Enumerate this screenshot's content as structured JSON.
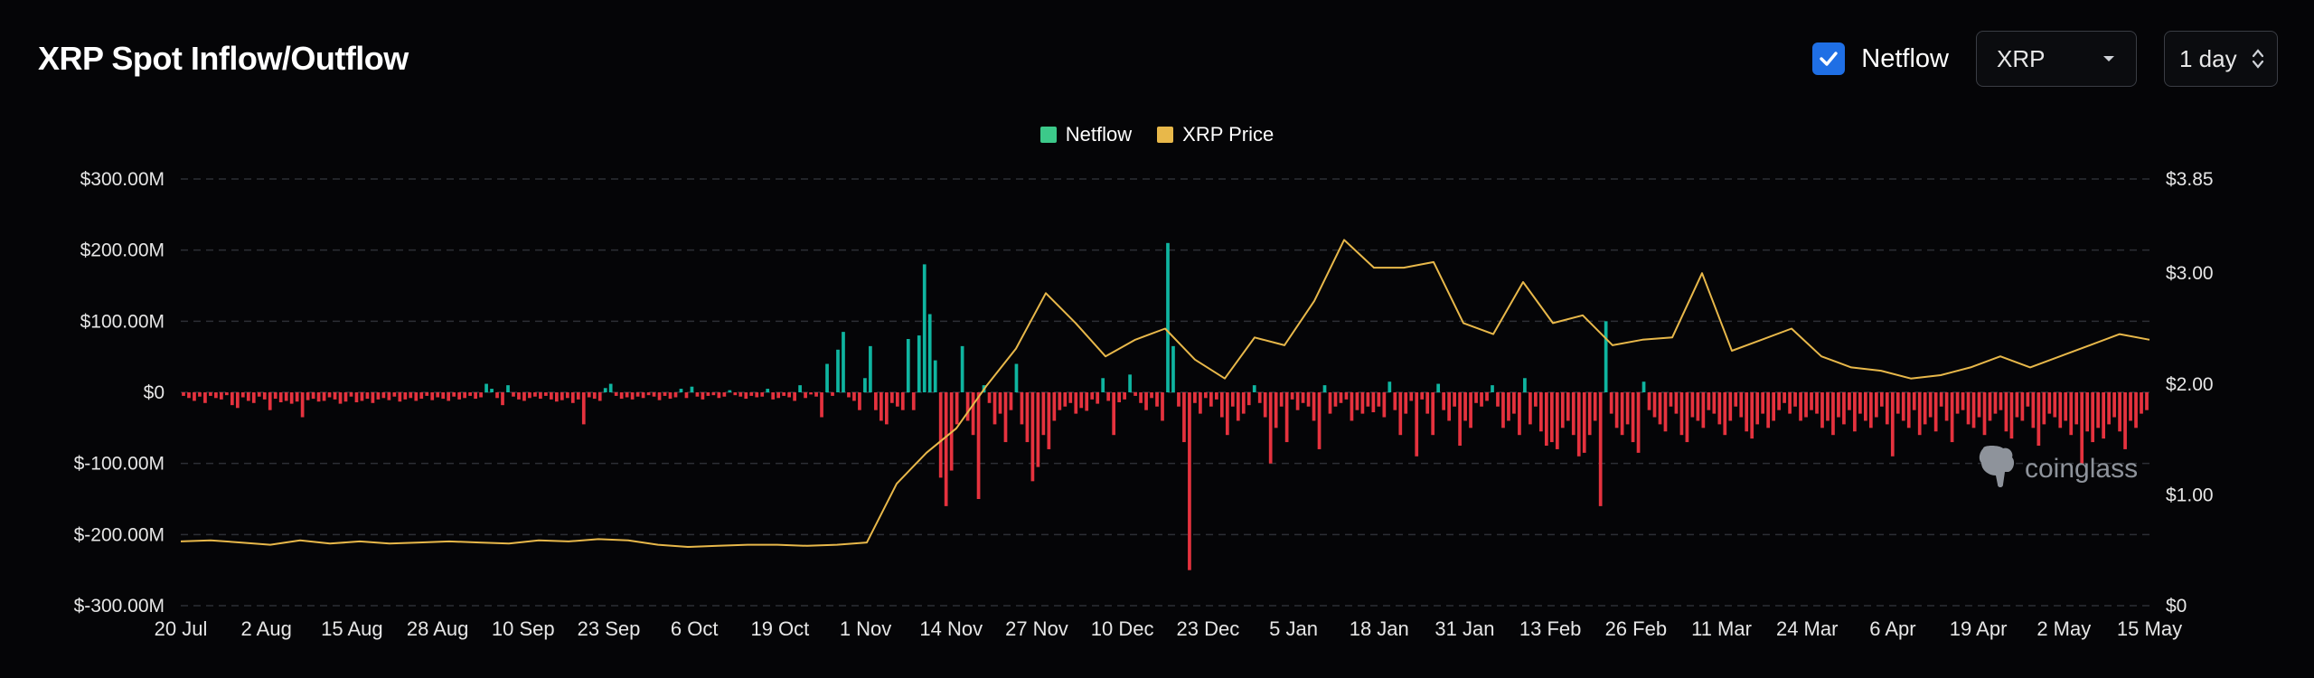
{
  "header": {
    "title": "XRP Spot Inflow/Outflow"
  },
  "controls": {
    "netflow_checkbox": {
      "label": "Netflow",
      "checked": true
    },
    "coin_select": {
      "value": "XRP"
    },
    "interval_select": {
      "value": "1 day"
    }
  },
  "watermark": {
    "text": "coinglass"
  },
  "colors": {
    "positive": "#0fb5a0",
    "negative": "#e5323e",
    "price_line": "#e8b84a",
    "legend_netflow": "#3cc98a",
    "legend_price": "#e8b84a",
    "checkbox": "#1f6fe5"
  },
  "chart_data": {
    "type": "bar",
    "title": "XRP Spot Inflow/Outflow",
    "legend": {
      "position": "top-center",
      "entries": [
        "Netflow",
        "XRP Price"
      ]
    },
    "grid": true,
    "x_tick_labels": [
      "20 Jul",
      "2 Aug",
      "15 Aug",
      "28 Aug",
      "10 Sep",
      "23 Sep",
      "6 Oct",
      "19 Oct",
      "1 Nov",
      "14 Nov",
      "27 Nov",
      "10 Dec",
      "23 Dec",
      "5 Jan",
      "18 Jan",
      "31 Jan",
      "13 Feb",
      "26 Feb",
      "11 Mar",
      "24 Mar",
      "6 Apr",
      "19 Apr",
      "2 May",
      "15 May"
    ],
    "y_left": {
      "ylim": [
        -300,
        300
      ],
      "unit": "$M",
      "ticks": [
        300,
        200,
        100,
        0,
        -100,
        -200,
        -300
      ],
      "tick_labels": [
        "$300.00M",
        "$200.00M",
        "$100.00M",
        "$0",
        "$-100.00M",
        "$-200.00M",
        "$-300.00M"
      ]
    },
    "y_right": {
      "ylim": [
        0,
        3.85
      ],
      "tick_values": [
        3.85,
        3.0,
        2.0,
        1.0,
        0
      ],
      "tick_labels": [
        "$3.85",
        "$3.00",
        "$2.00",
        "$1.00",
        "$0"
      ]
    },
    "netflow": {
      "name": "Netflow",
      "unit": "$M",
      "values": [
        -5,
        -8,
        -12,
        -6,
        -15,
        -5,
        -8,
        -10,
        -4,
        -18,
        -22,
        -7,
        -12,
        -15,
        -6,
        -10,
        -25,
        -9,
        -14,
        -12,
        -16,
        -13,
        -35,
        -11,
        -9,
        -13,
        -12,
        -7,
        -10,
        -16,
        -13,
        -6,
        -14,
        -12,
        -9,
        -15,
        -10,
        -8,
        -11,
        -6,
        -13,
        -10,
        -8,
        -12,
        -9,
        -5,
        -11,
        -7,
        -9,
        -12,
        -6,
        -10,
        -8,
        -5,
        -9,
        -7,
        12,
        5,
        -8,
        -18,
        10,
        -6,
        -10,
        -12,
        -8,
        -6,
        -9,
        -5,
        -10,
        -13,
        -11,
        -8,
        -15,
        -10,
        -45,
        -7,
        -9,
        -12,
        6,
        12,
        -5,
        -9,
        -7,
        -10,
        -6,
        -8,
        -4,
        -6,
        -11,
        -5,
        -9,
        -7,
        5,
        -8,
        8,
        -6,
        -10,
        -5,
        -4,
        -8,
        -6,
        3,
        -4,
        -6,
        -9,
        -5,
        -7,
        -6,
        5,
        -10,
        -8,
        -5,
        -7,
        -12,
        10,
        -8,
        -3,
        -6,
        -35,
        40,
        -5,
        60,
        85,
        -7,
        -12,
        -25,
        20,
        65,
        -25,
        -40,
        -45,
        -15,
        -20,
        -25,
        75,
        -25,
        80,
        180,
        110,
        45,
        -120,
        -160,
        -110,
        -45,
        65,
        -40,
        -60,
        -150,
        10,
        -15,
        -45,
        -30,
        -70,
        -25,
        40,
        -45,
        -70,
        -125,
        -105,
        -60,
        -80,
        -40,
        -25,
        -20,
        -15,
        -30,
        -22,
        -26,
        -10,
        -16,
        20,
        -12,
        -60,
        -14,
        -10,
        25,
        -5,
        -15,
        -25,
        -8,
        -20,
        -40,
        210,
        65,
        -20,
        -70,
        -250,
        -15,
        -30,
        -8,
        -20,
        -10,
        -35,
        -60,
        -20,
        -40,
        -30,
        -18,
        10,
        -15,
        -35,
        -100,
        -50,
        -20,
        -70,
        -10,
        -25,
        -15,
        -20,
        -40,
        -80,
        10,
        -30,
        -20,
        -15,
        -10,
        -40,
        -25,
        -30,
        -20,
        -28,
        -20,
        -35,
        15,
        -25,
        -60,
        -30,
        -12,
        -90,
        -10,
        -30,
        -60,
        12,
        -25,
        -40,
        -20,
        -75,
        -40,
        -50,
        -15,
        -20,
        -12,
        10,
        -20,
        -50,
        -40,
        -30,
        -60,
        20,
        -45,
        -20,
        -55,
        -75,
        -70,
        -80,
        -50,
        -40,
        -60,
        -90,
        -85,
        -60,
        -40,
        -160,
        100,
        -30,
        -50,
        -60,
        -45,
        -70,
        -85,
        15,
        -25,
        -35,
        -45,
        -55,
        -20,
        -30,
        -60,
        -70,
        -35,
        -40,
        -50,
        -25,
        -30,
        -45,
        -60,
        -40,
        -20,
        -35,
        -55,
        -65,
        -45,
        -30,
        -50,
        -40,
        -25,
        -15,
        -30,
        -20,
        -40,
        -35,
        -25,
        -30,
        -50,
        -40,
        -60,
        -35,
        -45,
        -25,
        -55,
        -30,
        -40,
        -50,
        -35,
        -20,
        -45,
        -90,
        -30,
        -40,
        -50,
        -25,
        -60,
        -45,
        -35,
        -55,
        -20,
        -40,
        -70,
        -30,
        -25,
        -45,
        -50,
        -35,
        -60,
        -40,
        -30,
        -25,
        -55,
        -65,
        -35,
        -40,
        -20,
        -50,
        -75,
        -45,
        -30,
        -35,
        -50,
        -40,
        -60,
        -45,
        -100,
        -55,
        -70,
        -50,
        -65,
        -45,
        -35,
        -55,
        -80,
        -40,
        -50,
        -30,
        -25
      ]
    },
    "price": {
      "name": "XRP Price",
      "unit": "$",
      "x_start": "20 Jul",
      "step_days": 7,
      "values": [
        0.58,
        0.59,
        0.57,
        0.55,
        0.59,
        0.56,
        0.58,
        0.56,
        0.57,
        0.58,
        0.57,
        0.56,
        0.59,
        0.58,
        0.6,
        0.59,
        0.55,
        0.53,
        0.54,
        0.55,
        0.55,
        0.54,
        0.55,
        0.57,
        1.1,
        1.38,
        1.6,
        1.98,
        2.32,
        2.82,
        2.55,
        2.25,
        2.4,
        2.5,
        2.22,
        2.05,
        2.42,
        2.35,
        2.75,
        3.3,
        3.05,
        3.05,
        3.1,
        2.55,
        2.45,
        2.92,
        2.55,
        2.62,
        2.35,
        2.4,
        2.42,
        3.0,
        2.3,
        2.4,
        2.5,
        2.25,
        2.15,
        2.12,
        2.05,
        2.08,
        2.15,
        2.25,
        2.15,
        2.25,
        2.35,
        2.45,
        2.4
      ]
    }
  }
}
